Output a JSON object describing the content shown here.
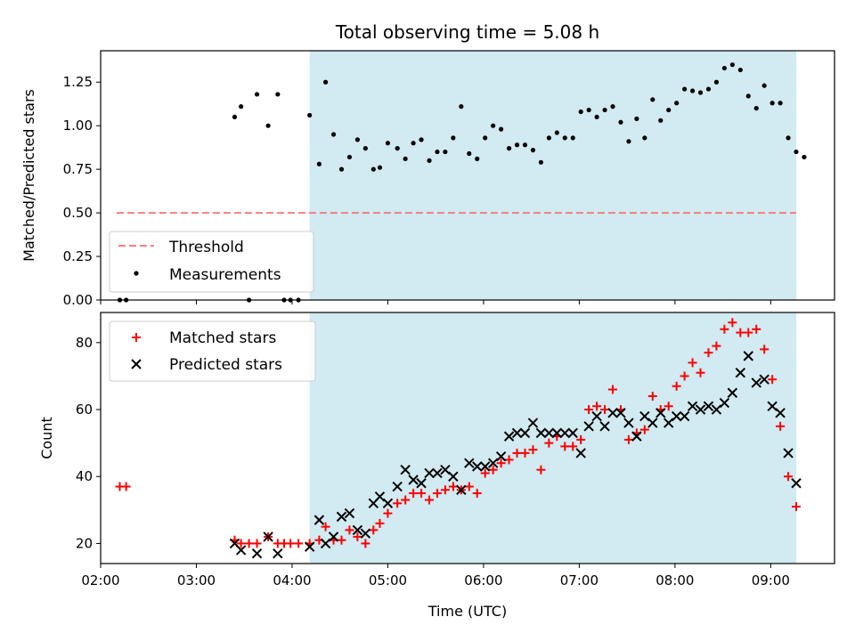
{
  "chart_data": [
    {
      "type": "scatter",
      "title": "Total observing time = 5.08 h",
      "ylabel": "Matched/Predicted stars",
      "xlim": [
        "02:00",
        "09:40"
      ],
      "ylim": [
        0,
        1.43
      ],
      "yticks": [
        "0.00",
        "0.25",
        "0.50",
        "0.75",
        "1.00",
        "1.25"
      ],
      "shaded_region": {
        "start": "04:11",
        "end": "09:16",
        "color": "#add8e6"
      },
      "legend_position": "lower-left",
      "threshold": {
        "name": "Threshold",
        "y": 0.5,
        "x_start": "02:10",
        "x_end": "09:16",
        "color": "#f08080",
        "style": "dashed"
      },
      "series": [
        {
          "name": "Measurements",
          "color": "#000000",
          "points": [
            [
              "02:12",
              0.0
            ],
            [
              "02:16",
              0.0
            ],
            [
              "03:24",
              1.05
            ],
            [
              "03:28",
              1.11
            ],
            [
              "03:33",
              0.0
            ],
            [
              "03:38",
              1.18
            ],
            [
              "03:45",
              1.0
            ],
            [
              "03:51",
              1.18
            ],
            [
              "03:55",
              0.0
            ],
            [
              "03:59",
              0.0
            ],
            [
              "04:04",
              0.0
            ],
            [
              "04:11",
              1.06
            ],
            [
              "04:17",
              0.78
            ],
            [
              "04:21",
              1.25
            ],
            [
              "04:26",
              0.95
            ],
            [
              "04:31",
              0.75
            ],
            [
              "04:36",
              0.82
            ],
            [
              "04:41",
              0.92
            ],
            [
              "04:46",
              0.87
            ],
            [
              "04:51",
              0.75
            ],
            [
              "04:55",
              0.76
            ],
            [
              "05:00",
              0.9
            ],
            [
              "05:06",
              0.87
            ],
            [
              "05:11",
              0.81
            ],
            [
              "05:16",
              0.9
            ],
            [
              "05:21",
              0.92
            ],
            [
              "05:26",
              0.8
            ],
            [
              "05:31",
              0.85
            ],
            [
              "05:36",
              0.85
            ],
            [
              "05:41",
              0.93
            ],
            [
              "05:46",
              1.11
            ],
            [
              "05:51",
              0.84
            ],
            [
              "05:56",
              0.81
            ],
            [
              "06:01",
              0.93
            ],
            [
              "06:06",
              1.0
            ],
            [
              "06:11",
              0.98
            ],
            [
              "06:16",
              0.87
            ],
            [
              "06:21",
              0.89
            ],
            [
              "06:26",
              0.89
            ],
            [
              "06:31",
              0.86
            ],
            [
              "06:36",
              0.79
            ],
            [
              "06:41",
              0.93
            ],
            [
              "06:46",
              0.96
            ],
            [
              "06:51",
              0.93
            ],
            [
              "06:56",
              0.93
            ],
            [
              "07:01",
              1.08
            ],
            [
              "07:06",
              1.09
            ],
            [
              "07:11",
              1.05
            ],
            [
              "07:16",
              1.09
            ],
            [
              "07:21",
              1.11
            ],
            [
              "07:26",
              1.02
            ],
            [
              "07:31",
              0.91
            ],
            [
              "07:36",
              1.04
            ],
            [
              "07:41",
              0.93
            ],
            [
              "07:46",
              1.15
            ],
            [
              "07:51",
              1.03
            ],
            [
              "07:56",
              1.09
            ],
            [
              "08:01",
              1.13
            ],
            [
              "08:06",
              1.21
            ],
            [
              "08:11",
              1.2
            ],
            [
              "08:16",
              1.19
            ],
            [
              "08:21",
              1.21
            ],
            [
              "08:26",
              1.25
            ],
            [
              "08:31",
              1.33
            ],
            [
              "08:36",
              1.35
            ],
            [
              "08:41",
              1.32
            ],
            [
              "08:46",
              1.17
            ],
            [
              "08:51",
              1.1
            ],
            [
              "08:56",
              1.23
            ],
            [
              "09:01",
              1.13
            ],
            [
              "09:06",
              1.13
            ],
            [
              "09:11",
              0.93
            ],
            [
              "09:16",
              0.85
            ],
            [
              "09:21",
              0.82
            ]
          ]
        }
      ]
    },
    {
      "type": "scatter",
      "xlabel": "Time (UTC)",
      "ylabel": "Count",
      "xlim": [
        "02:00",
        "09:40"
      ],
      "ylim": [
        14,
        89
      ],
      "xticks": [
        "02:00",
        "03:00",
        "04:00",
        "05:00",
        "06:00",
        "07:00",
        "08:00",
        "09:00"
      ],
      "yticks": [
        "20",
        "40",
        "60",
        "80"
      ],
      "shaded_region": {
        "start": "04:11",
        "end": "09:16",
        "color": "#add8e6"
      },
      "legend_position": "upper-left",
      "series": [
        {
          "name": "Matched stars",
          "marker": "plus",
          "color": "#ff0000",
          "points": [
            [
              "02:12",
              37
            ],
            [
              "02:16",
              37
            ],
            [
              "03:24",
              21
            ],
            [
              "03:28",
              20
            ],
            [
              "03:33",
              20
            ],
            [
              "03:38",
              20
            ],
            [
              "03:45",
              22
            ],
            [
              "03:51",
              20
            ],
            [
              "03:55",
              20
            ],
            [
              "03:59",
              20
            ],
            [
              "04:04",
              20
            ],
            [
              "04:11",
              20
            ],
            [
              "04:17",
              21
            ],
            [
              "04:21",
              25
            ],
            [
              "04:26",
              21
            ],
            [
              "04:31",
              21
            ],
            [
              "04:36",
              24
            ],
            [
              "04:41",
              22
            ],
            [
              "04:46",
              20
            ],
            [
              "04:51",
              24
            ],
            [
              "04:55",
              26
            ],
            [
              "05:00",
              29
            ],
            [
              "05:06",
              32
            ],
            [
              "05:11",
              33
            ],
            [
              "05:16",
              35
            ],
            [
              "05:21",
              35
            ],
            [
              "05:26",
              33
            ],
            [
              "05:31",
              35
            ],
            [
              "05:36",
              36
            ],
            [
              "05:41",
              37
            ],
            [
              "05:46",
              36
            ],
            [
              "05:51",
              37
            ],
            [
              "05:56",
              35
            ],
            [
              "06:01",
              41
            ],
            [
              "06:06",
              42
            ],
            [
              "06:11",
              44
            ],
            [
              "06:16",
              45
            ],
            [
              "06:21",
              47
            ],
            [
              "06:26",
              47
            ],
            [
              "06:31",
              48
            ],
            [
              "06:36",
              42
            ],
            [
              "06:41",
              50
            ],
            [
              "06:46",
              52
            ],
            [
              "06:51",
              49
            ],
            [
              "06:56",
              49
            ],
            [
              "07:01",
              51
            ],
            [
              "07:06",
              60
            ],
            [
              "07:11",
              61
            ],
            [
              "07:16",
              60
            ],
            [
              "07:21",
              66
            ],
            [
              "07:26",
              60
            ],
            [
              "07:31",
              51
            ],
            [
              "07:36",
              53
            ],
            [
              "07:41",
              54
            ],
            [
              "07:46",
              64
            ],
            [
              "07:51",
              60
            ],
            [
              "07:56",
              61
            ],
            [
              "08:01",
              67
            ],
            [
              "08:06",
              70
            ],
            [
              "08:11",
              74
            ],
            [
              "08:16",
              71
            ],
            [
              "08:21",
              77
            ],
            [
              "08:26",
              79
            ],
            [
              "08:31",
              84
            ],
            [
              "08:36",
              86
            ],
            [
              "08:41",
              83
            ],
            [
              "08:46",
              83
            ],
            [
              "08:51",
              84
            ],
            [
              "08:56",
              78
            ],
            [
              "09:01",
              69
            ],
            [
              "09:06",
              55
            ],
            [
              "09:11",
              40
            ],
            [
              "09:16",
              31
            ]
          ]
        },
        {
          "name": "Predicted stars",
          "marker": "x",
          "color": "#000000",
          "points": [
            [
              "03:24",
              20
            ],
            [
              "03:28",
              18
            ],
            [
              "03:38",
              17
            ],
            [
              "03:45",
              22
            ],
            [
              "03:51",
              17
            ],
            [
              "04:11",
              19
            ],
            [
              "04:17",
              27
            ],
            [
              "04:21",
              20
            ],
            [
              "04:26",
              22
            ],
            [
              "04:31",
              28
            ],
            [
              "04:36",
              29
            ],
            [
              "04:41",
              24
            ],
            [
              "04:46",
              23
            ],
            [
              "04:51",
              32
            ],
            [
              "04:55",
              34
            ],
            [
              "05:00",
              32
            ],
            [
              "05:06",
              37
            ],
            [
              "05:11",
              42
            ],
            [
              "05:16",
              39
            ],
            [
              "05:21",
              38
            ],
            [
              "05:26",
              41
            ],
            [
              "05:31",
              41
            ],
            [
              "05:36",
              42
            ],
            [
              "05:41",
              40
            ],
            [
              "05:46",
              36
            ],
            [
              "05:51",
              44
            ],
            [
              "05:56",
              43
            ],
            [
              "06:01",
              43
            ],
            [
              "06:06",
              44
            ],
            [
              "06:11",
              46
            ],
            [
              "06:16",
              52
            ],
            [
              "06:21",
              53
            ],
            [
              "06:26",
              53
            ],
            [
              "06:31",
              56
            ],
            [
              "06:36",
              53
            ],
            [
              "06:41",
              53
            ],
            [
              "06:46",
              53
            ],
            [
              "06:51",
              53
            ],
            [
              "06:56",
              53
            ],
            [
              "07:01",
              47
            ],
            [
              "07:06",
              55
            ],
            [
              "07:11",
              58
            ],
            [
              "07:16",
              55
            ],
            [
              "07:21",
              59
            ],
            [
              "07:26",
              59
            ],
            [
              "07:31",
              56
            ],
            [
              "07:36",
              52
            ],
            [
              "07:41",
              58
            ],
            [
              "07:46",
              56
            ],
            [
              "07:51",
              59
            ],
            [
              "07:56",
              56
            ],
            [
              "08:01",
              58
            ],
            [
              "08:06",
              58
            ],
            [
              "08:11",
              61
            ],
            [
              "08:16",
              60
            ],
            [
              "08:21",
              61
            ],
            [
              "08:26",
              60
            ],
            [
              "08:31",
              62
            ],
            [
              "08:36",
              65
            ],
            [
              "08:41",
              71
            ],
            [
              "08:46",
              76
            ],
            [
              "08:51",
              68
            ],
            [
              "08:56",
              69
            ],
            [
              "09:01",
              61
            ],
            [
              "09:06",
              59
            ],
            [
              "09:11",
              47
            ],
            [
              "09:16",
              38
            ]
          ]
        }
      ]
    }
  ]
}
